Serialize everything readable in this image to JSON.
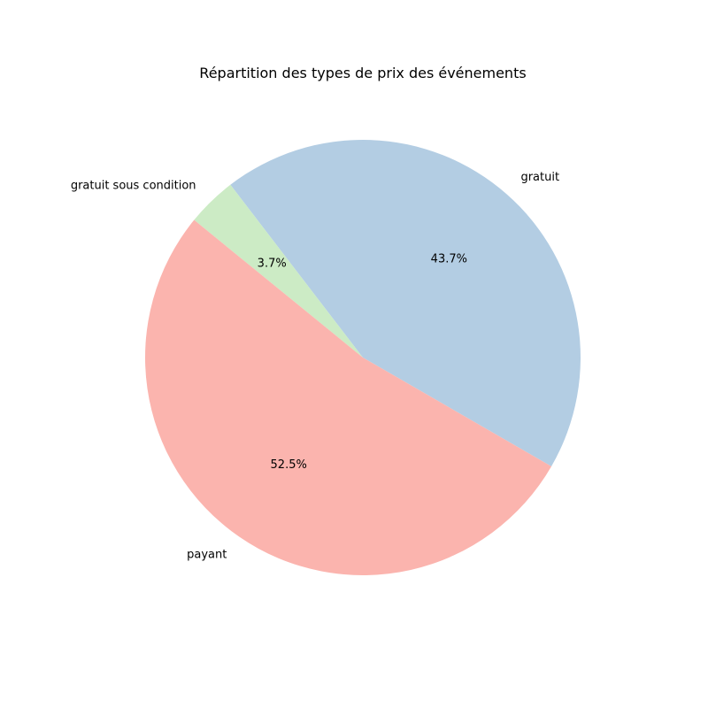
{
  "chart_data": {
    "type": "pie",
    "title": "Répartition des types de prix des événements",
    "slices": [
      {
        "label": "gratuit",
        "value": 43.7,
        "pct_label": "43.7%",
        "color": "#b3cde3"
      },
      {
        "label": "gratuit sous condition",
        "value": 3.7,
        "pct_label": "3.7%",
        "color": "#ccebc5"
      },
      {
        "label": "payant",
        "value": 52.5,
        "pct_label": "52.5%",
        "color": "#fbb4ae"
      }
    ],
    "start_angle_deg": -30,
    "direction": "counterclockwise",
    "legend": "none"
  }
}
